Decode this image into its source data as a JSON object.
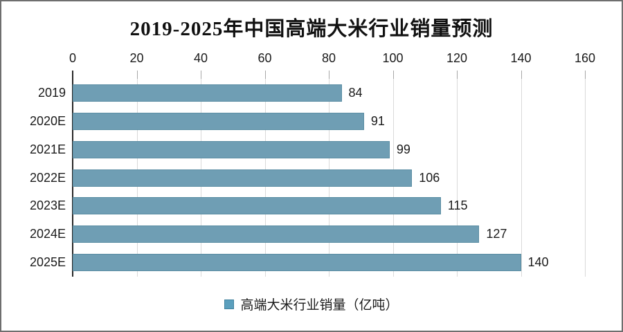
{
  "frame": {
    "background": "#ffffff",
    "border_color": "#6e6e6e"
  },
  "chart_data": {
    "type": "bar",
    "orientation": "horizontal",
    "title": "2019-2025年中国高端大米行业销量预测",
    "categories": [
      "2019",
      "2020E",
      "2021E",
      "2022E",
      "2023E",
      "2024E",
      "2025E"
    ],
    "values": [
      84,
      91,
      99,
      106,
      115,
      127,
      140
    ],
    "series_name": "高端大米行业销量（亿吨）",
    "value_labels_shown": true,
    "x_axis": {
      "position": "top",
      "min": 0,
      "max": 160,
      "tick_interval": 20,
      "ticks": [
        0,
        20,
        40,
        60,
        80,
        100,
        120,
        140,
        160
      ]
    },
    "grid": true,
    "legend_position": "bottom",
    "colors": {
      "bar_fill": "#6f9eb4",
      "bar_border": "#5a8da3",
      "legend_marker_fill": "#5b9fbd",
      "legend_marker_border": "#41839f",
      "gridline": "#d9d9d9",
      "tick_mark": "#a6a6a6",
      "axis_line": "#262626",
      "text": "#1a1a1a"
    }
  }
}
